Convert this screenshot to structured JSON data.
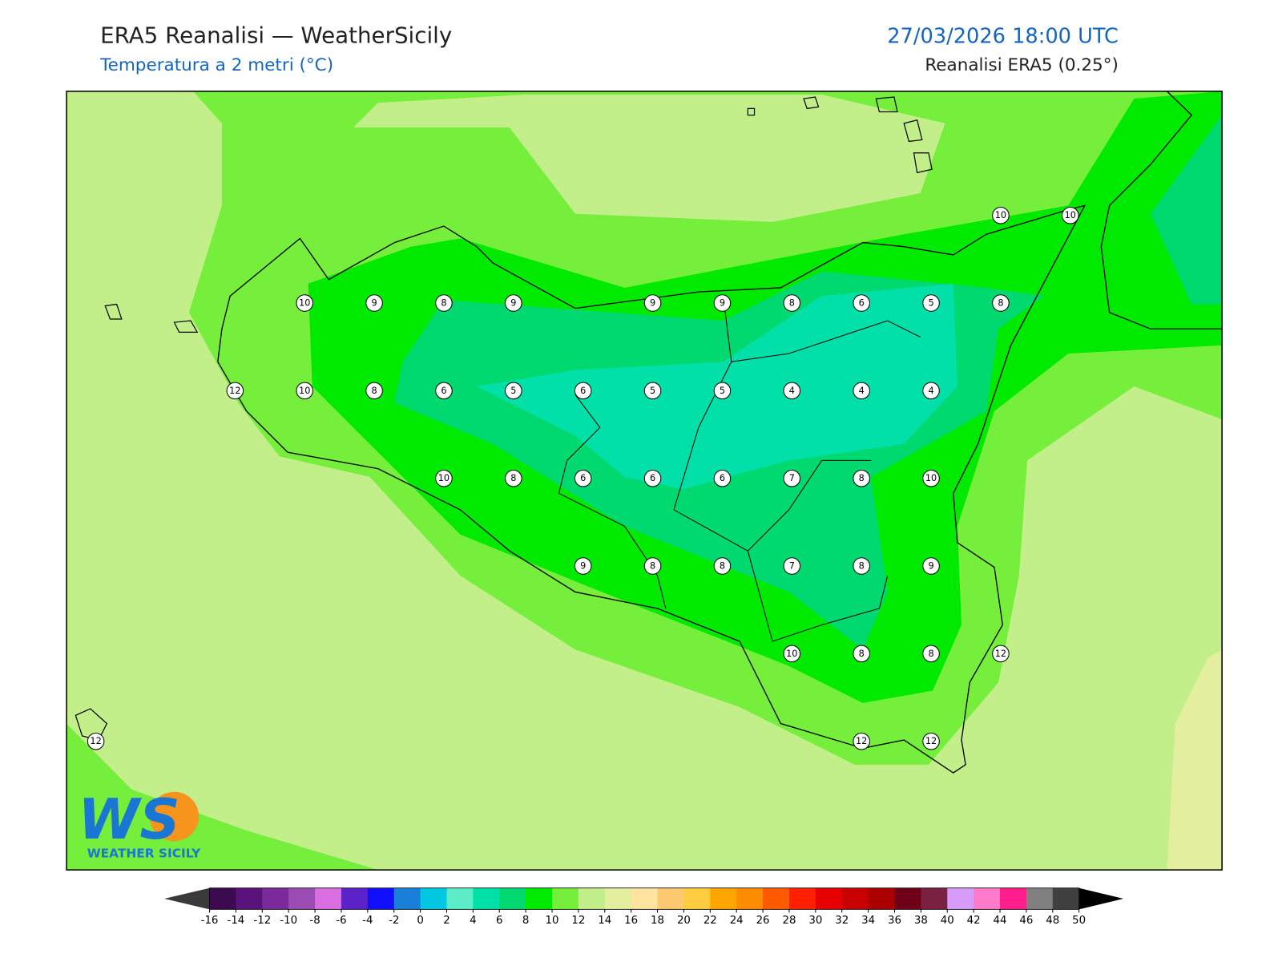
{
  "header": {
    "title": "ERA5 Reanalisi — WeatherSicily",
    "subtitle": "Temperatura a 2 metri (°C)",
    "datetime": "27/03/2026 18:00 UTC",
    "source": "Reanalisi ERA5 (0.25°)"
  },
  "logo": {
    "mark": "WS",
    "text": "WEATHER SICILY"
  },
  "stations": [
    [
      null,
      null,
      null,
      null,
      null,
      null,
      null,
      null,
      null,
      null,
      null,
      null,
      null,
      10,
      10
    ],
    [
      null,
      null,
      null,
      10,
      9,
      8,
      9,
      null,
      9,
      9,
      8,
      6,
      5,
      8,
      null
    ],
    [
      null,
      null,
      12,
      10,
      8,
      6,
      5,
      6,
      5,
      5,
      4,
      4,
      4,
      null,
      null
    ],
    [
      null,
      null,
      null,
      null,
      null,
      10,
      8,
      6,
      6,
      6,
      7,
      8,
      10,
      null,
      null
    ],
    [
      null,
      null,
      null,
      null,
      null,
      null,
      null,
      9,
      8,
      8,
      7,
      8,
      9,
      null,
      null
    ],
    [
      null,
      null,
      null,
      null,
      null,
      null,
      null,
      null,
      null,
      null,
      10,
      8,
      8,
      12,
      null
    ],
    [
      12,
      null,
      null,
      null,
      null,
      null,
      null,
      null,
      null,
      null,
      null,
      12,
      12,
      null,
      null
    ]
  ],
  "colorbar": {
    "ticks": [
      -16,
      -14,
      -12,
      -10,
      -8,
      -6,
      -4,
      -2,
      0,
      2,
      4,
      6,
      8,
      10,
      12,
      14,
      16,
      18,
      20,
      22,
      24,
      26,
      28,
      30,
      32,
      34,
      36,
      38,
      40,
      42,
      44,
      46,
      48,
      50
    ],
    "colors": [
      "#3b0a4f",
      "#5a137a",
      "#7a2a9a",
      "#9a4cb3",
      "#d86ee0",
      "#5a22c8",
      "#1010ff",
      "#1a7fd9",
      "#00c8e0",
      "#5cedc8",
      "#00e0a8",
      "#00d870",
      "#00ea00",
      "#75ee3c",
      "#c3ef8b",
      "#e3ee9e",
      "#ffe3a0",
      "#fcc870",
      "#ffcc40",
      "#ffa500",
      "#ff8c00",
      "#ff5a00",
      "#ff2000",
      "#e60000",
      "#c80000",
      "#aa0000",
      "#700018",
      "#7a2040",
      "#d69cf7",
      "#ff7acb",
      "#ff1e8c",
      "#808080",
      "#404040"
    ],
    "under_color": "#3a3a3a",
    "over_color": "#000000"
  }
}
